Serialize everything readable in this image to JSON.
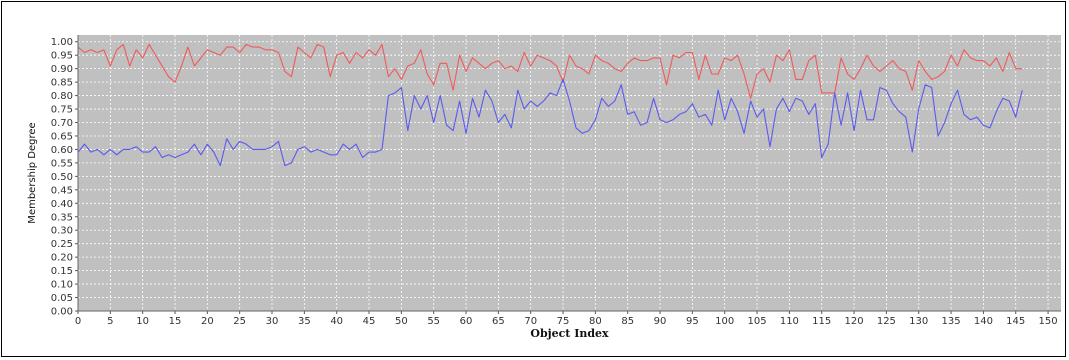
{
  "chart_data": {
    "type": "line",
    "title": "",
    "xlabel": "Object Index",
    "ylabel": "Membership Degree",
    "xlim": [
      0,
      152
    ],
    "ylim": [
      0,
      1.025
    ],
    "x_ticks": [
      0,
      5,
      10,
      15,
      20,
      25,
      30,
      35,
      40,
      45,
      50,
      55,
      60,
      65,
      70,
      75,
      80,
      85,
      90,
      95,
      100,
      105,
      110,
      115,
      120,
      125,
      130,
      135,
      140,
      145,
      150
    ],
    "y_ticks": [
      "0.00",
      "0.05",
      "0.10",
      "0.15",
      "0.20",
      "0.25",
      "0.30",
      "0.35",
      "0.40",
      "0.45",
      "0.50",
      "0.55",
      "0.60",
      "0.65",
      "0.70",
      "0.75",
      "0.80",
      "0.85",
      "0.90",
      "0.95",
      "1.00"
    ],
    "grid": true,
    "legend": "none",
    "colors": {
      "plot_background": "#c0c0c0",
      "gridline": "#ffffff",
      "series_1": "#f05a5a",
      "series_2": "#5a5af0"
    },
    "series": [
      {
        "values": [
          0.98,
          0.96,
          0.97,
          0.96,
          0.97,
          0.91,
          0.97,
          0.99,
          0.91,
          0.97,
          0.94,
          0.99,
          0.95,
          0.91,
          0.87,
          0.85,
          0.91,
          0.98,
          0.91,
          0.94,
          0.97,
          0.96,
          0.95,
          0.98,
          0.98,
          0.96,
          0.99,
          0.98,
          0.98,
          0.97,
          0.97,
          0.96,
          0.89,
          0.87,
          0.98,
          0.96,
          0.94,
          0.99,
          0.98,
          0.87,
          0.95,
          0.96,
          0.92,
          0.96,
          0.94,
          0.97,
          0.95,
          0.99,
          0.87,
          0.9,
          0.86,
          0.91,
          0.92,
          0.97,
          0.88,
          0.84,
          0.92,
          0.92,
          0.82,
          0.95,
          0.89,
          0.94,
          0.92,
          0.9,
          0.92,
          0.93,
          0.9,
          0.91,
          0.89,
          0.96,
          0.91,
          0.95,
          0.94,
          0.93,
          0.91,
          0.85,
          0.95,
          0.91,
          0.9,
          0.88,
          0.95,
          0.93,
          0.92,
          0.9,
          0.89,
          0.92,
          0.94,
          0.93,
          0.93,
          0.94,
          0.94,
          0.84,
          0.95,
          0.94,
          0.96,
          0.96,
          0.86,
          0.95,
          0.88,
          0.88,
          0.94,
          0.93,
          0.95,
          0.88,
          0.79,
          0.88,
          0.9,
          0.85,
          0.95,
          0.93,
          0.97,
          0.86,
          0.86,
          0.93,
          0.95,
          0.81,
          0.81,
          0.81,
          0.94,
          0.88,
          0.86,
          0.9,
          0.95,
          0.91,
          0.89,
          0.91,
          0.93,
          0.9,
          0.89,
          0.82,
          0.93,
          0.89,
          0.86,
          0.87,
          0.89,
          0.95,
          0.91,
          0.97,
          0.94,
          0.93,
          0.93,
          0.91,
          0.94,
          0.89,
          0.96,
          0.9,
          0.9
        ]
      },
      {
        "values": [
          0.59,
          0.62,
          0.59,
          0.6,
          0.58,
          0.6,
          0.58,
          0.6,
          0.6,
          0.61,
          0.59,
          0.59,
          0.61,
          0.57,
          0.58,
          0.57,
          0.58,
          0.59,
          0.62,
          0.58,
          0.62,
          0.59,
          0.54,
          0.64,
          0.6,
          0.63,
          0.62,
          0.6,
          0.6,
          0.6,
          0.61,
          0.63,
          0.54,
          0.55,
          0.6,
          0.61,
          0.59,
          0.6,
          0.59,
          0.58,
          0.58,
          0.62,
          0.6,
          0.62,
          0.57,
          0.59,
          0.59,
          0.6,
          0.8,
          0.81,
          0.83,
          0.67,
          0.8,
          0.75,
          0.8,
          0.7,
          0.8,
          0.69,
          0.67,
          0.78,
          0.66,
          0.79,
          0.72,
          0.82,
          0.78,
          0.7,
          0.73,
          0.68,
          0.82,
          0.75,
          0.78,
          0.76,
          0.78,
          0.81,
          0.8,
          0.86,
          0.78,
          0.68,
          0.66,
          0.67,
          0.71,
          0.79,
          0.76,
          0.78,
          0.84,
          0.73,
          0.74,
          0.69,
          0.7,
          0.79,
          0.71,
          0.7,
          0.71,
          0.73,
          0.74,
          0.77,
          0.72,
          0.73,
          0.69,
          0.82,
          0.71,
          0.79,
          0.74,
          0.66,
          0.78,
          0.72,
          0.75,
          0.61,
          0.75,
          0.79,
          0.74,
          0.79,
          0.78,
          0.73,
          0.77,
          0.57,
          0.62,
          0.81,
          0.69,
          0.81,
          0.67,
          0.82,
          0.71,
          0.71,
          0.83,
          0.82,
          0.77,
          0.74,
          0.72,
          0.59,
          0.75,
          0.84,
          0.83,
          0.65,
          0.7,
          0.77,
          0.82,
          0.73,
          0.71,
          0.72,
          0.69,
          0.68,
          0.74,
          0.79,
          0.78,
          0.72,
          0.82
        ]
      }
    ]
  }
}
